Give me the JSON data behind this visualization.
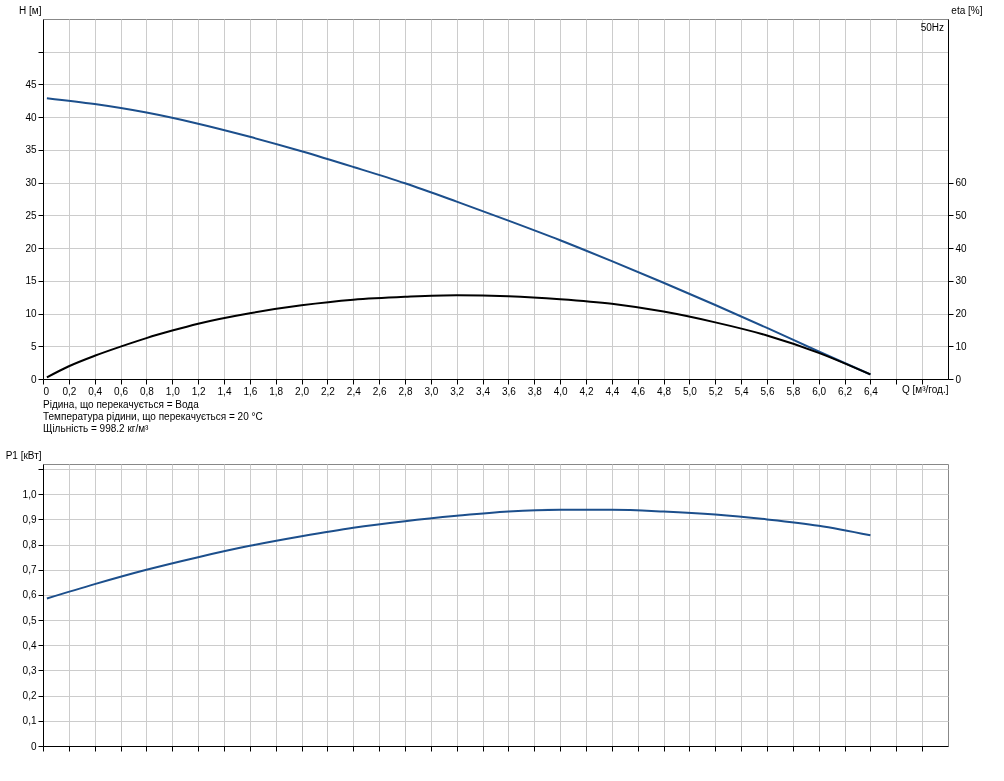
{
  "chart_data": [
    {
      "type": "line",
      "title": "50Hz",
      "xlabel": "Q [м³/год.]",
      "ylabel": "H [м]",
      "y2label": "eta [%]",
      "annotations": [
        "Рідина, що перекачується = Вода",
        "Температура рідини, що перекачується = 20 °C",
        "Щільність = 998.2 кг/м³"
      ],
      "x": [
        0.03,
        0.4,
        0.8,
        1.2,
        1.6,
        2.0,
        2.4,
        2.8,
        3.2,
        3.6,
        4.0,
        4.4,
        4.8,
        5.2,
        5.6,
        6.0,
        6.4
      ],
      "series": [
        {
          "color": "#1c4f8c",
          "values": [
            42.9,
            42.0,
            40.7,
            39.0,
            37.0,
            34.8,
            32.4,
            29.9,
            27.1,
            24.2,
            21.2,
            18.0,
            14.7,
            11.3,
            7.8,
            4.2,
            0.7
          ]
        },
        {
          "color": "#000000",
          "axis": "y2",
          "x": [
            0.03,
            0.2,
            0.4,
            0.6,
            0.8,
            1.0,
            1.2,
            1.6,
            2.0,
            2.4,
            2.8,
            3.2,
            3.6,
            4.0,
            4.4,
            4.8,
            5.2,
            5.6,
            6.0,
            6.4
          ],
          "values": [
            0.5,
            3.9,
            7.1,
            9.9,
            12.5,
            14.8,
            16.9,
            20.1,
            22.5,
            24.2,
            25.1,
            25.6,
            25.3,
            24.4,
            23.0,
            20.6,
            17.3,
            13.3,
            8.0,
            1.4
          ]
        }
      ],
      "xlim": [
        0,
        7
      ],
      "xticks": [
        0,
        {
          "value": 0.2,
          "label": "0,2"
        },
        {
          "value": 0.4,
          "label": "0,4"
        },
        {
          "value": 0.6,
          "label": "0,6"
        },
        {
          "value": 0.8,
          "label": "0,8"
        },
        {
          "value": 1.0,
          "label": "1,0"
        },
        {
          "value": 1.2,
          "label": "1,2"
        },
        {
          "value": 1.4,
          "label": "1,4"
        },
        {
          "value": 1.6,
          "label": "1,6"
        },
        {
          "value": 1.8,
          "label": "1,8"
        },
        {
          "value": 2.0,
          "label": "2,0"
        },
        {
          "value": 2.2,
          "label": "2,2"
        },
        {
          "value": 2.4,
          "label": "2,4"
        },
        {
          "value": 2.6,
          "label": "2,6"
        },
        {
          "value": 2.8,
          "label": "2,8"
        },
        {
          "value": 3.0,
          "label": "3,0"
        },
        {
          "value": 3.2,
          "label": "3,2"
        },
        {
          "value": 3.4,
          "label": "3,4"
        },
        {
          "value": 3.6,
          "label": "3,6"
        },
        {
          "value": 3.8,
          "label": "3,8"
        },
        {
          "value": 4.0,
          "label": "4,0"
        },
        {
          "value": 4.2,
          "label": "4,2"
        },
        {
          "value": 4.4,
          "label": "4,4"
        },
        {
          "value": 4.6,
          "label": "4,6"
        },
        {
          "value": 4.8,
          "label": "4,8"
        },
        {
          "value": 5.0,
          "label": "5,0"
        },
        {
          "value": 5.2,
          "label": "5,2"
        },
        {
          "value": 5.4,
          "label": "5,4"
        },
        {
          "value": 5.6,
          "label": "5,6"
        },
        {
          "value": 5.8,
          "label": "5,8"
        },
        {
          "value": 6.0,
          "label": "6,0"
        },
        {
          "value": 6.2,
          "label": "6,2"
        },
        {
          "value": 6.4,
          "label": "6,4"
        },
        {
          "value": 6.6,
          "label": null
        },
        {
          "value": 6.8,
          "label": null
        }
      ],
      "ylim": [
        0,
        55
      ],
      "yticks": [
        0,
        5,
        10,
        15,
        20,
        25,
        30,
        35,
        40,
        45,
        {
          "value": 50,
          "label": null
        }
      ],
      "y2lim": [
        0,
        110
      ],
      "y2ticks": [
        0,
        10,
        20,
        30,
        40,
        50,
        60
      ],
      "grid": true
    },
    {
      "type": "line",
      "ylabel": "P1 [кВт]",
      "tick_labels": "y",
      "x": [
        0.03,
        0.4,
        0.8,
        1.2,
        1.6,
        2.0,
        2.4,
        2.8,
        3.2,
        3.6,
        4.0,
        4.4,
        4.8,
        5.2,
        5.6,
        6.0,
        6.4
      ],
      "series": [
        {
          "color": "#1c4f8c",
          "values": [
            0.586,
            0.643,
            0.7,
            0.75,
            0.795,
            0.833,
            0.867,
            0.893,
            0.914,
            0.931,
            0.938,
            0.938,
            0.931,
            0.919,
            0.9,
            0.875,
            0.837
          ]
        }
      ],
      "xlim": [
        0,
        7
      ],
      "xticks": [
        0,
        0.2,
        0.4,
        0.6,
        0.8,
        1.0,
        1.2,
        1.4,
        1.6,
        1.8,
        2.0,
        2.2,
        2.4,
        2.6,
        2.8,
        3.0,
        3.2,
        3.4,
        3.6,
        3.8,
        4.0,
        4.2,
        4.4,
        4.6,
        4.8,
        5.0,
        5.2,
        5.4,
        5.6,
        5.8,
        6.0,
        6.2,
        6.4,
        6.6,
        6.8
      ],
      "ylim": [
        0,
        1.12
      ],
      "yticks": [
        0,
        {
          "value": 0.1,
          "label": "0,1"
        },
        {
          "value": 0.2,
          "label": "0,2"
        },
        {
          "value": 0.3,
          "label": "0,3"
        },
        {
          "value": 0.4,
          "label": "0,4"
        },
        {
          "value": 0.5,
          "label": "0,5"
        },
        {
          "value": 0.6,
          "label": "0,6"
        },
        {
          "value": 0.7,
          "label": "0,7"
        },
        {
          "value": 0.8,
          "label": "0,8"
        },
        {
          "value": 0.9,
          "label": "0,9"
        },
        {
          "value": 1.0,
          "label": "1,0"
        },
        {
          "value": 1.1,
          "label": null
        }
      ],
      "grid": true
    }
  ]
}
